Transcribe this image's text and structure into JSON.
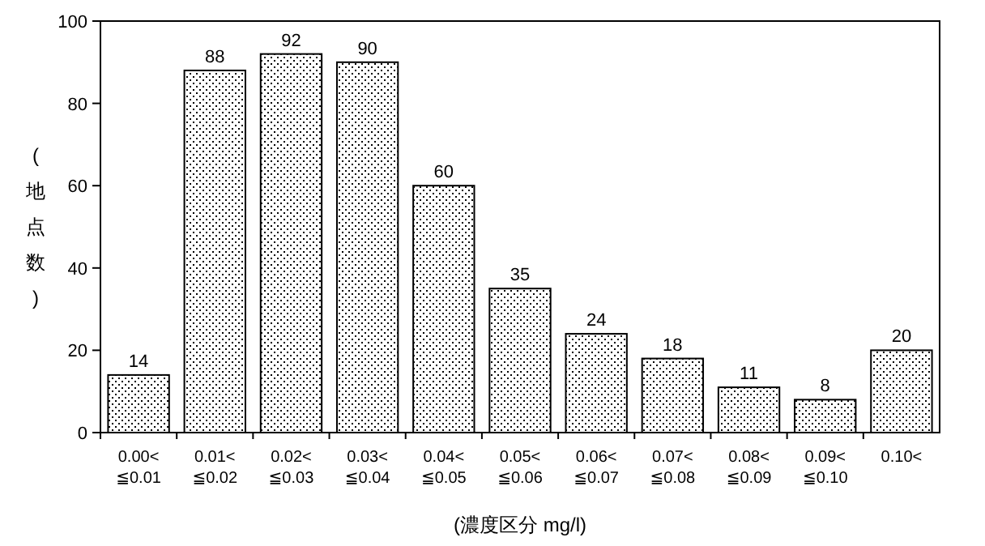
{
  "chart_data": {
    "type": "bar",
    "xlabel": "(濃度区分 mg/l)",
    "ylabel": "(地点数)",
    "categories": [
      "0.00<\n≦0.01",
      "0.01<\n≦0.02",
      "0.02<\n≦0.03",
      "0.03<\n≦0.04",
      "0.04<\n≦0.05",
      "0.05<\n≦0.06",
      "0.06<\n≦0.07",
      "0.07<\n≦0.08",
      "0.08<\n≦0.09",
      "0.09<\n≦0.10",
      "0.10<"
    ],
    "values": [
      14,
      88,
      92,
      90,
      60,
      35,
      24,
      18,
      11,
      8,
      20
    ],
    "color": "#000000",
    "ylim": [
      0,
      100
    ],
    "yticks": [
      0,
      20,
      40,
      60,
      80,
      100
    ],
    "grid": false,
    "data_labels": true
  }
}
